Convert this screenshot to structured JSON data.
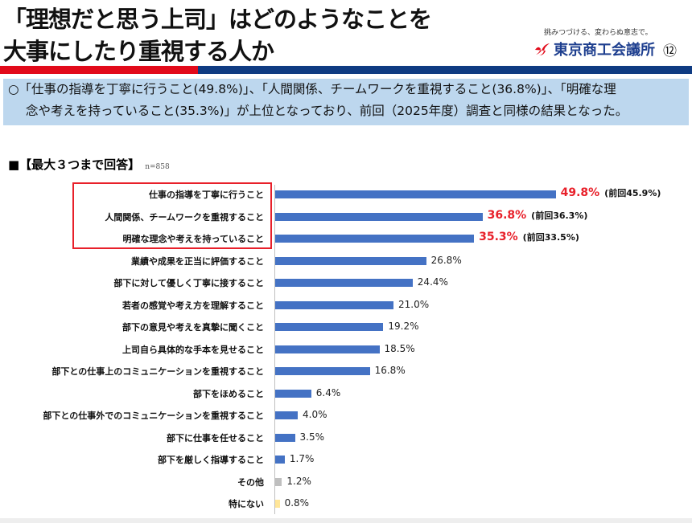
{
  "header": {
    "title_line1": "「理想だと思う上司」はどのようなことを",
    "title_line2": "大事にしたり重視する人か",
    "slogan": "挑みつづける、変わらぬ意志で。",
    "org": "東京商工会議所",
    "page": "⑫"
  },
  "summary": {
    "line1": "○「仕事の指導を丁寧に行うこと(49.8%)」、「人間関係、チームワークを重視すること(36.8%)」、「明確な理",
    "line2": "念や考えを持っていること(35.3%)」が上位となっており、前回（2025年度）調査と同様の結果となった。"
  },
  "section": {
    "heading": "■【最大３つまで回答】",
    "n": "n=858"
  },
  "colors": {
    "main": "#4472c4",
    "other": "#bfbfbf",
    "none": "#ffe699",
    "highlight": "#e8202a"
  },
  "chart_data": {
    "type": "bar",
    "orientation": "horizontal",
    "unit": "%",
    "xlim": [
      0,
      60
    ],
    "categories": [
      "仕事の指導を丁寧に行うこと",
      "人間関係、チームワークを重視すること",
      "明確な理念や考えを持っていること",
      "業績や成果を正当に評価すること",
      "部下に対して優しく丁寧に接すること",
      "若者の感覚や考え方を理解すること",
      "部下の意見や考えを真摯に聞くこと",
      "上司自ら具体的な手本を見せること",
      "部下との仕事上のコミュニケーションを重視すること",
      "部下をほめること",
      "部下との仕事外でのコミュニケーションを重視すること",
      "部下に仕事を任せること",
      "部下を厳しく指導すること",
      "その他",
      "特にない"
    ],
    "values": [
      49.8,
      36.8,
      35.3,
      26.8,
      24.4,
      21.0,
      19.2,
      18.5,
      16.8,
      6.4,
      4.0,
      3.5,
      1.7,
      1.2,
      0.8
    ],
    "labels": [
      "49.8%",
      "36.8%",
      "35.3%",
      "26.8%",
      "24.4%",
      "21.0%",
      "19.2%",
      "18.5%",
      "16.8%",
      "6.4%",
      "4.0%",
      "3.5%",
      "1.7%",
      "1.2%",
      "0.8%"
    ],
    "previous": [
      "(前回45.9%)",
      "(前回36.3%)",
      "(前回33.5%)"
    ],
    "highlighted": [
      0,
      1,
      2
    ]
  }
}
